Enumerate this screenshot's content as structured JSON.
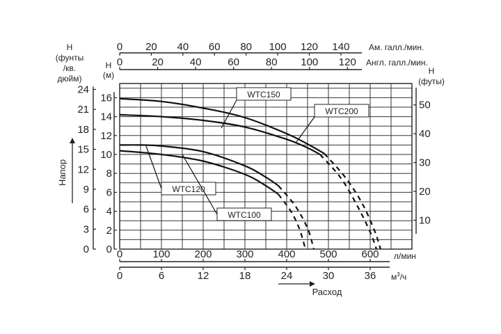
{
  "chart_data": {
    "type": "line",
    "x_axis_bottom_primary": {
      "unit": "л/мин",
      "ticks": [
        0,
        100,
        200,
        300,
        400,
        500,
        600
      ],
      "range": [
        0,
        700
      ]
    },
    "x_axis_bottom_secondary": {
      "unit": "м³/ч",
      "unit_base": "м",
      "unit_sup": "3",
      "unit_tail": "/ч",
      "ticks": [
        0,
        6,
        12,
        18,
        24,
        30,
        36
      ]
    },
    "x_label": "Расход",
    "x_axis_top_us": {
      "unit": "Ам. галл./мин.",
      "ticks": [
        0,
        20,
        40,
        60,
        80,
        100,
        120,
        140
      ]
    },
    "x_axis_top_uk": {
      "unit": "Англ. галл./мин.",
      "ticks": [
        0,
        20,
        40,
        60,
        80,
        100,
        120
      ]
    },
    "y_axis_left_psi": {
      "label_lines": [
        "Н",
        "(фунты",
        "/кв.",
        "дюйм)"
      ],
      "ticks": [
        0,
        3,
        6,
        9,
        12,
        15,
        18,
        21,
        24
      ]
    },
    "y_axis_left_m": {
      "label_lines": [
        "Н",
        "(м)"
      ],
      "ticks": [
        0,
        2,
        4,
        6,
        8,
        10,
        12,
        14,
        16
      ],
      "range": [
        0,
        17.5
      ]
    },
    "y_axis_right_ft": {
      "label_lines": [
        "Н",
        "(футы)"
      ],
      "ticks": [
        10,
        20,
        30,
        40,
        50
      ]
    },
    "y_label": "Напор",
    "grid": true,
    "series": [
      {
        "name": "WTC150",
        "solid": [
          [
            0,
            14.2
          ],
          [
            100,
            14.0
          ],
          [
            200,
            13.6
          ],
          [
            300,
            12.9
          ],
          [
            400,
            11.6
          ],
          [
            450,
            10.7
          ],
          [
            480,
            10.0
          ]
        ],
        "dashed": [
          [
            480,
            10.0
          ],
          [
            530,
            7.5
          ],
          [
            570,
            4.5
          ],
          [
            600,
            1.8
          ],
          [
            615,
            0
          ]
        ]
      },
      {
        "name": "WTC200",
        "solid": [
          [
            0,
            15.9
          ],
          [
            100,
            15.6
          ],
          [
            200,
            14.9
          ],
          [
            300,
            13.9
          ],
          [
            400,
            12.2
          ],
          [
            450,
            11.1
          ],
          [
            490,
            10.1
          ]
        ],
        "dashed": [
          [
            490,
            10.1
          ],
          [
            540,
            7.6
          ],
          [
            580,
            4.9
          ],
          [
            610,
            2.0
          ],
          [
            625,
            0
          ]
        ]
      },
      {
        "name": "WTC120",
        "solid": [
          [
            0,
            11.0
          ],
          [
            50,
            11.0
          ],
          [
            100,
            10.9
          ],
          [
            200,
            10.3
          ],
          [
            300,
            8.8
          ],
          [
            350,
            7.6
          ],
          [
            380,
            6.7
          ]
        ],
        "dashed": [
          [
            380,
            6.7
          ],
          [
            420,
            4.6
          ],
          [
            450,
            2.2
          ],
          [
            465,
            0
          ]
        ]
      },
      {
        "name": "WTC100",
        "solid": [
          [
            0,
            10.4
          ],
          [
            100,
            10.0
          ],
          [
            200,
            9.3
          ],
          [
            300,
            7.9
          ],
          [
            350,
            6.7
          ],
          [
            380,
            5.8
          ]
        ],
        "dashed": [
          [
            380,
            5.8
          ],
          [
            410,
            4.0
          ],
          [
            430,
            2.2
          ],
          [
            445,
            0
          ]
        ]
      }
    ]
  }
}
